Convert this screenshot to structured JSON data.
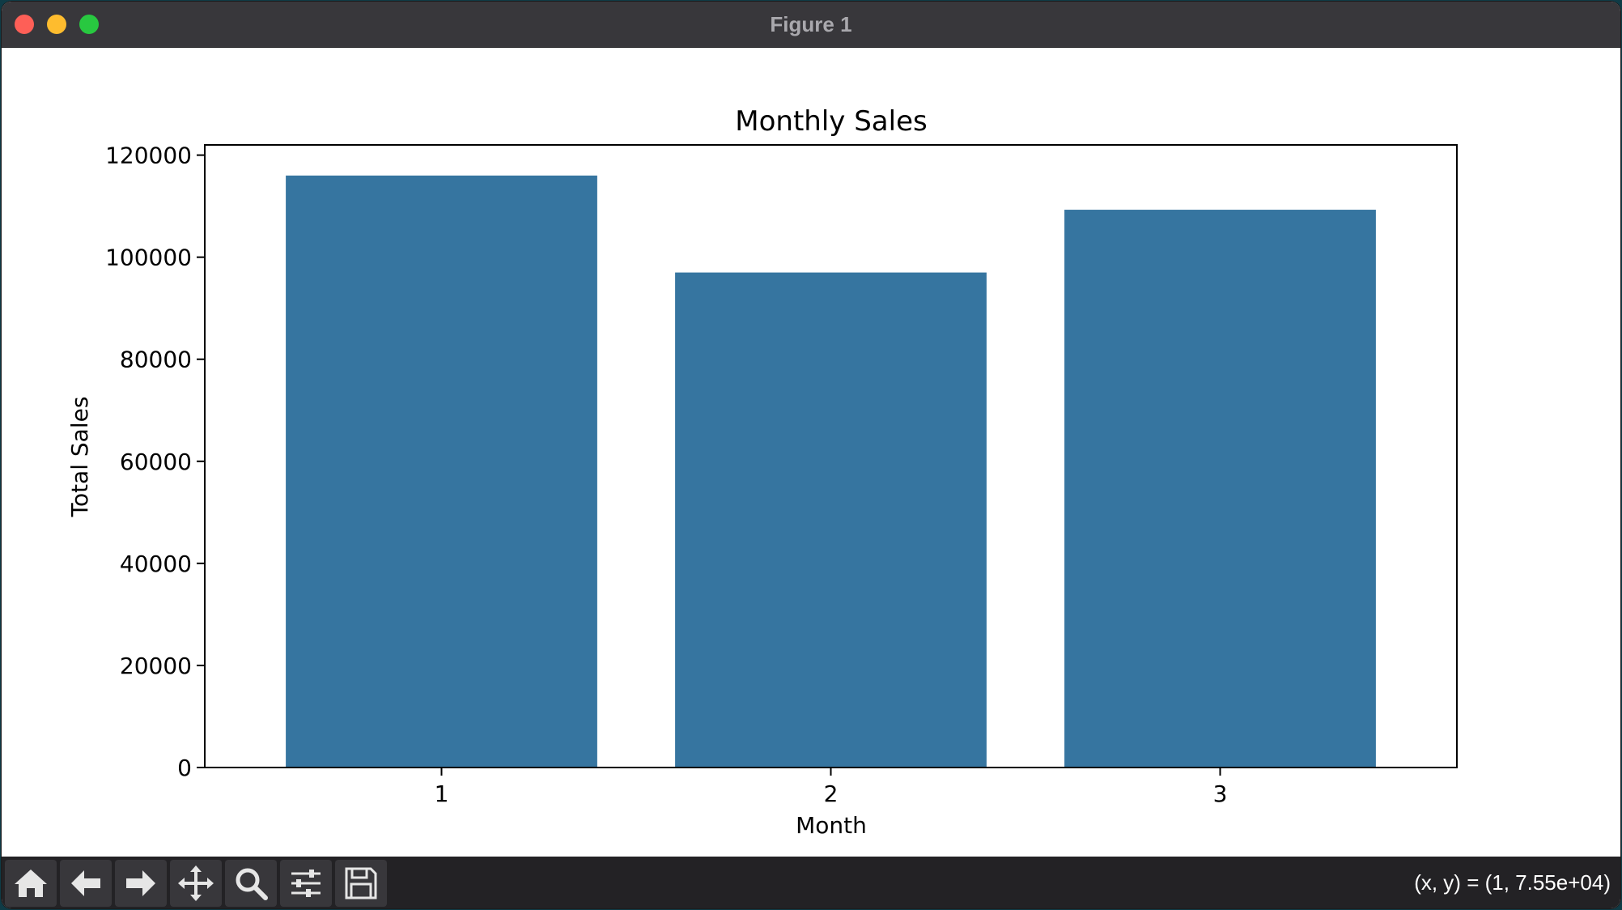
{
  "window": {
    "title": "Figure 1"
  },
  "toolbar": {
    "buttons": [
      {
        "name": "home-button",
        "icon": "home-icon"
      },
      {
        "name": "back-button",
        "icon": "arrow-left-icon"
      },
      {
        "name": "forward-button",
        "icon": "arrow-right-icon"
      },
      {
        "name": "pan-button",
        "icon": "move-arrows-icon"
      },
      {
        "name": "zoom-button",
        "icon": "magnifier-icon"
      },
      {
        "name": "configure-subplots-button",
        "icon": "sliders-icon"
      },
      {
        "name": "save-button",
        "icon": "floppy-disk-icon"
      }
    ],
    "coordinates": "(x, y) = (1, 7.55e+04)"
  },
  "colors": {
    "bar": "#3675a0",
    "titlebar": "#38373b",
    "toolbar": "#232225"
  },
  "chart_data": {
    "type": "bar",
    "title": "Monthly Sales",
    "xlabel": "Month",
    "ylabel": "Total Sales",
    "categories": [
      "1",
      "2",
      "3"
    ],
    "values": [
      116000,
      97000,
      109300
    ],
    "ylim": [
      0,
      122000
    ],
    "yticks": [
      0,
      20000,
      40000,
      60000,
      80000,
      100000,
      120000
    ],
    "ytick_labels": [
      "0",
      "20000",
      "40000",
      "60000",
      "80000",
      "100000",
      "120000"
    ],
    "grid": false,
    "legend": "none"
  }
}
